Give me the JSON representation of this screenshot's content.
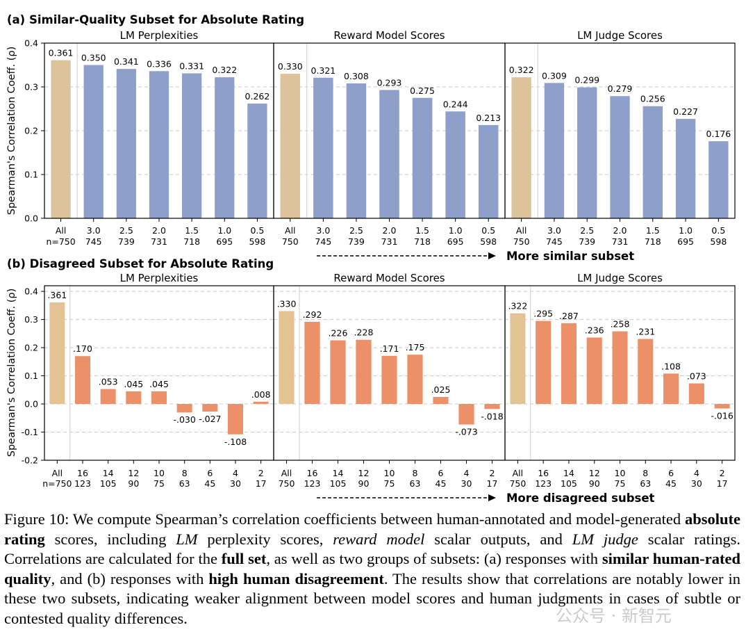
{
  "chart_data": [
    {
      "type": "bar",
      "panel_title": "(a) Similar-Quality Subset for Absolute Rating",
      "ylabel": "Spearman's Correlation Coeff. (ρ)",
      "ylim": [
        0,
        0.4
      ],
      "yticks": [
        0.0,
        0.1,
        0.2,
        0.3,
        0.4
      ],
      "grid": true,
      "arrow_label": "More similar subset",
      "subplots": [
        {
          "title": "LM Perplexities",
          "categories": [
            "All",
            "3.0",
            "2.5",
            "2.0",
            "1.5",
            "1.0",
            "0.5"
          ],
          "counts": [
            "n=750",
            "745",
            "739",
            "731",
            "718",
            "695",
            "598"
          ],
          "values": [
            0.361,
            0.35,
            0.341,
            0.336,
            0.331,
            0.322,
            0.262
          ],
          "labels": [
            "0.361",
            "0.350",
            "0.341",
            "0.336",
            "0.331",
            "0.322",
            "0.262"
          ]
        },
        {
          "title": "Reward Model Scores",
          "categories": [
            "All",
            "3.0",
            "2.5",
            "2.0",
            "1.5",
            "1.0",
            "0.5"
          ],
          "counts": [
            "750",
            "745",
            "739",
            "731",
            "718",
            "695",
            "598"
          ],
          "values": [
            0.33,
            0.321,
            0.308,
            0.293,
            0.275,
            0.244,
            0.213
          ],
          "labels": [
            "0.330",
            "0.321",
            "0.308",
            "0.293",
            "0.275",
            "0.244",
            "0.213"
          ]
        },
        {
          "title": "LM Judge Scores",
          "categories": [
            "All",
            "3.0",
            "2.5",
            "2.0",
            "1.5",
            "1.0",
            "0.5"
          ],
          "counts": [
            "750",
            "745",
            "739",
            "731",
            "718",
            "695",
            "598"
          ],
          "values": [
            0.322,
            0.309,
            0.299,
            0.279,
            0.256,
            0.227,
            0.176
          ],
          "labels": [
            "0.322",
            "0.309",
            "0.299",
            "0.279",
            "0.256",
            "0.227",
            "0.176"
          ]
        }
      ]
    },
    {
      "type": "bar",
      "panel_title": "(b) Disagreed Subset for Absolute Rating",
      "ylabel": "Spearman's Correlation Coeff. (ρ)",
      "ylim": [
        -0.2,
        0.42
      ],
      "yticks": [
        -0.2,
        -0.1,
        0.0,
        0.1,
        0.2,
        0.3,
        0.4
      ],
      "grid": true,
      "arrow_label": "More disagreed subset",
      "subplots": [
        {
          "title": "LM Perplexities",
          "categories": [
            "All",
            "16",
            "14",
            "12",
            "10",
            "8",
            "6",
            "4",
            "2"
          ],
          "counts": [
            "n=750",
            "123",
            "105",
            "90",
            "75",
            "63",
            "45",
            "30",
            "17"
          ],
          "values": [
            0.361,
            0.17,
            0.053,
            0.045,
            0.045,
            -0.03,
            -0.027,
            -0.108,
            0.008
          ],
          "labels": [
            ".361",
            ".170",
            ".053",
            ".045",
            ".045",
            "-.030",
            "-.027",
            "-.108",
            ".008"
          ]
        },
        {
          "title": "Reward Model Scores",
          "categories": [
            "All",
            "16",
            "14",
            "12",
            "10",
            "8",
            "6",
            "4",
            "2"
          ],
          "counts": [
            "750",
            "123",
            "105",
            "90",
            "75",
            "63",
            "45",
            "30",
            "17"
          ],
          "values": [
            0.33,
            0.292,
            0.226,
            0.228,
            0.171,
            0.175,
            0.025,
            -0.073,
            -0.018
          ],
          "labels": [
            ".330",
            ".292",
            ".226",
            ".228",
            ".171",
            ".175",
            ".025",
            "-.073",
            "-.018"
          ]
        },
        {
          "title": "LM Judge Scores",
          "categories": [
            "All",
            "16",
            "14",
            "12",
            "10",
            "8",
            "6",
            "4",
            "2"
          ],
          "counts": [
            "750",
            "123",
            "105",
            "90",
            "75",
            "63",
            "45",
            "30",
            "17"
          ],
          "values": [
            0.322,
            0.295,
            0.287,
            0.236,
            0.258,
            0.231,
            0.108,
            0.073,
            -0.016
          ],
          "labels": [
            ".322",
            ".295",
            ".287",
            ".236",
            ".258",
            ".231",
            ".108",
            ".073",
            "-.016"
          ]
        }
      ]
    }
  ],
  "colors": {
    "all_bar": "#dcc39c",
    "all_bar_b": "#e3c393",
    "bar_a": "#8ea0c9",
    "bar_b": "#eb9068",
    "grid": "#c8c8c8"
  },
  "caption": {
    "figure_label": "Figure 10:",
    "t1": " We compute Spearman’s correlation coefficients between human-annotated and model-generated ",
    "b1": "absolute rating",
    "t2": " scores, including ",
    "i1": "LM",
    "t3": " perplexity scores, ",
    "i2": "reward model",
    "t4": " scalar outputs, and ",
    "i3": "LM judge",
    "t5": " scalar ratings. Correlations are calculated for the ",
    "b2": "full set",
    "t6": ", as well as two groups of subsets: (a) responses with ",
    "b3": "similar human-rated quality",
    "t7": ", and (b) responses with ",
    "b4": "high human disagreement",
    "t8": ". The results show that correlations are notably lower in these two subsets, indicating weaker alignment between model scores and human judgments in cases of subtle or contested quality differences."
  },
  "watermark": "公众号 · 新智元"
}
